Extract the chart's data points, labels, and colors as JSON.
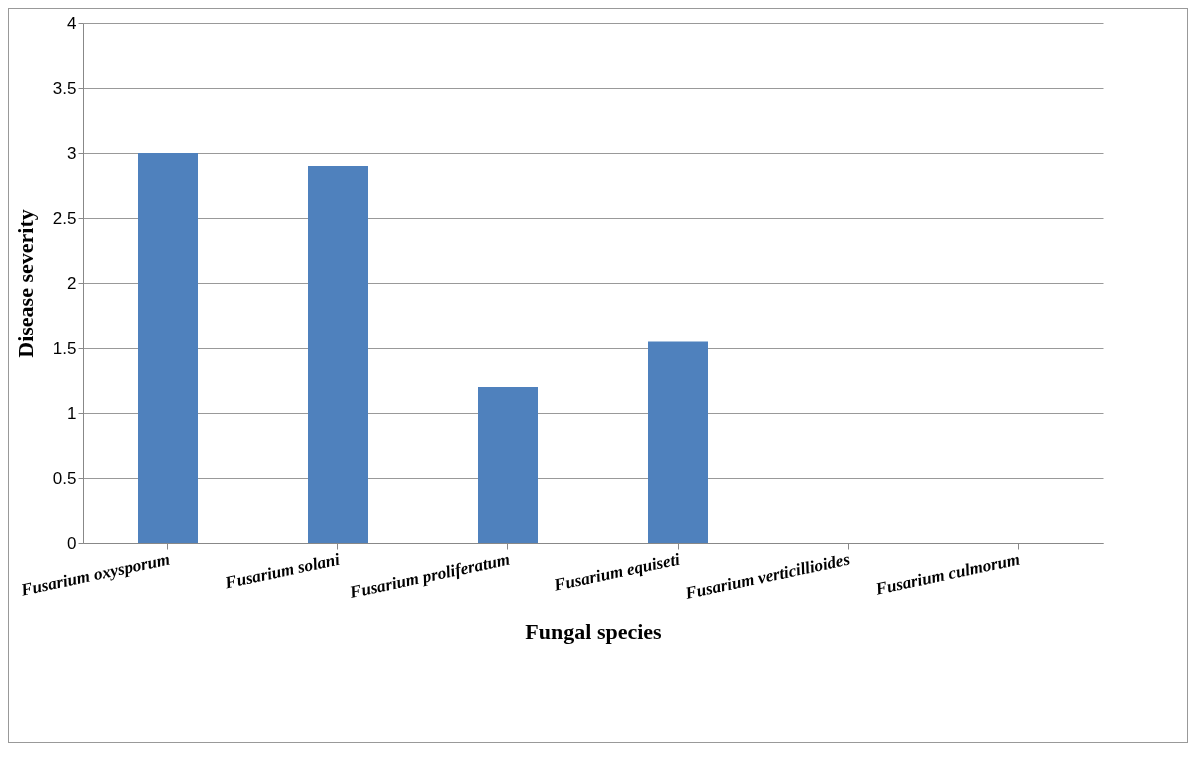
{
  "chart_data": {
    "type": "bar",
    "xlabel": "Fungal species",
    "ylabel": "Disease severity",
    "categories": [
      "Fusarium oxysporum",
      "Fusarium solani",
      "Fusarium proliferatum",
      "Fusarium equiseti",
      "Fusarium verticillioides",
      "Fusarium culmorum"
    ],
    "values": [
      3.0,
      2.9,
      1.2,
      1.55,
      0,
      0
    ],
    "color": "#4f81bd",
    "ylim": [
      0,
      4
    ],
    "yticks": [
      0,
      0.5,
      1,
      1.5,
      2,
      2.5,
      3,
      3.5,
      4
    ],
    "grid": "y"
  }
}
